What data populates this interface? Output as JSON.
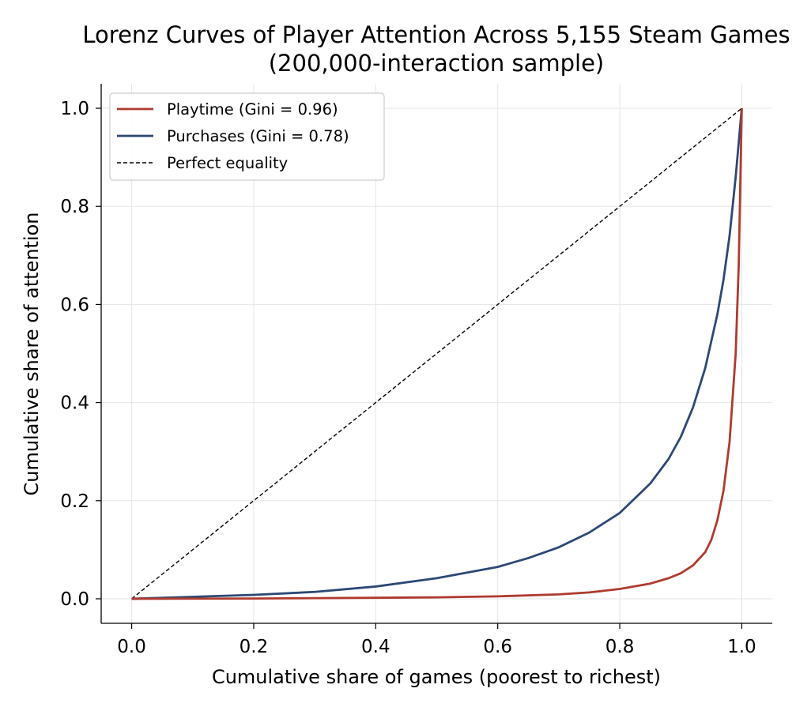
{
  "chart_data": {
    "type": "line",
    "title": "Lorenz Curves of Player Attention Across 5,155 Steam Games",
    "subtitle": "(200,000-interaction sample)",
    "xlabel": "Cumulative share of games (poorest to richest)",
    "ylabel": "Cumulative share of attention",
    "xlim": [
      -0.05,
      1.05
    ],
    "ylim": [
      -0.05,
      1.05
    ],
    "x_ticks": [
      "0.0",
      "0.2",
      "0.4",
      "0.6",
      "0.8",
      "1.0"
    ],
    "y_ticks": [
      "0.0",
      "0.2",
      "0.4",
      "0.6",
      "0.8",
      "1.0"
    ],
    "grid": true,
    "legend_position": "top-left",
    "series": [
      {
        "name": "Playtime (Gini = 0.96)",
        "color": "#b03a2e",
        "style": "solid",
        "x": [
          0,
          0.2,
          0.4,
          0.5,
          0.6,
          0.7,
          0.75,
          0.8,
          0.85,
          0.88,
          0.9,
          0.92,
          0.94,
          0.95,
          0.96,
          0.97,
          0.98,
          0.99,
          0.995,
          1.0
        ],
        "y": [
          0,
          0.0005,
          0.002,
          0.003,
          0.005,
          0.009,
          0.013,
          0.02,
          0.031,
          0.042,
          0.052,
          0.068,
          0.095,
          0.12,
          0.16,
          0.22,
          0.32,
          0.5,
          0.68,
          1.0
        ]
      },
      {
        "name": "Purchases (Gini = 0.78)",
        "color": "#2c4875",
        "style": "solid",
        "x": [
          0,
          0.1,
          0.2,
          0.3,
          0.4,
          0.5,
          0.6,
          0.65,
          0.7,
          0.75,
          0.8,
          0.85,
          0.88,
          0.9,
          0.92,
          0.94,
          0.96,
          0.97,
          0.98,
          0.99,
          0.995,
          1.0
        ],
        "y": [
          0,
          0.004,
          0.008,
          0.014,
          0.025,
          0.042,
          0.065,
          0.083,
          0.105,
          0.135,
          0.175,
          0.235,
          0.285,
          0.33,
          0.39,
          0.47,
          0.58,
          0.65,
          0.74,
          0.86,
          0.93,
          1.0
        ]
      },
      {
        "name": "Perfect equality",
        "color": "#000000",
        "style": "dashed",
        "x": [
          0,
          1
        ],
        "y": [
          0,
          1
        ]
      }
    ]
  }
}
